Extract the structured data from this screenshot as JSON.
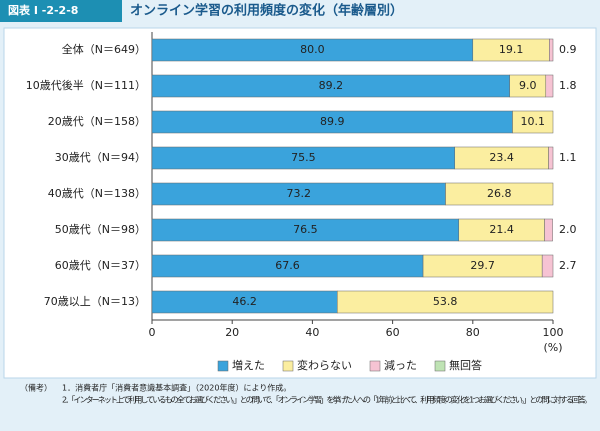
{
  "chart_data": {
    "type": "stacked-barh",
    "figure_number": "図表 I -2-2-8",
    "title": "オンライン学習の利用頻度の変化（年齢層別）",
    "categories": [
      "全体（N＝649）",
      "10歳代後半（N＝111）",
      "20歳代（N＝158）",
      "30歳代（N＝94）",
      "40歳代（N＝138）",
      "50歳代（N＝98）",
      "60歳代（N＝37）",
      "70歳以上（N＝13）"
    ],
    "series": [
      {
        "name": "増えた",
        "color": "#3aa3dc",
        "values": [
          80.0,
          89.2,
          89.9,
          75.5,
          73.2,
          76.5,
          67.6,
          46.2
        ],
        "value_labels": [
          "80.0",
          "89.2",
          "89.9",
          "75.5",
          "73.2",
          "76.5",
          "67.6",
          "46.2"
        ]
      },
      {
        "name": "変わらない",
        "color": "#fbeea0",
        "values": [
          19.1,
          9.0,
          10.1,
          23.4,
          26.8,
          21.4,
          29.7,
          53.8
        ],
        "value_labels": [
          "19.1",
          "9.0",
          "10.1",
          "23.4",
          "26.8",
          "21.4",
          "29.7",
          "53.8"
        ]
      },
      {
        "name": "減った",
        "color": "#f6c3d3",
        "values": [
          0.9,
          1.8,
          0,
          1.1,
          0,
          2.0,
          2.7,
          0
        ],
        "value_labels": [
          "0.9",
          "1.8",
          null,
          "1.1",
          null,
          "2.0",
          "2.7",
          null
        ]
      },
      {
        "name": "無回答",
        "color": "#bfe3b4",
        "values": [
          0,
          0,
          0,
          0,
          0,
          0,
          0,
          0
        ]
      }
    ],
    "xlim": [
      0,
      100
    ],
    "xticks": [
      0,
      20,
      40,
      60,
      80,
      100
    ],
    "xlabel": "(%)",
    "notes_heading": "（備考）",
    "notes": [
      "1．消費者庁「消費者意識基本調査」（2020年度）により作成。",
      "2．「インターネット上で利用しているもの全てお選びください。」との問いで、「オンライン学習」を挙げた人への「1年前と比べて、利用頻度の変化を1つお選びください。」との問に対する回答。"
    ]
  }
}
